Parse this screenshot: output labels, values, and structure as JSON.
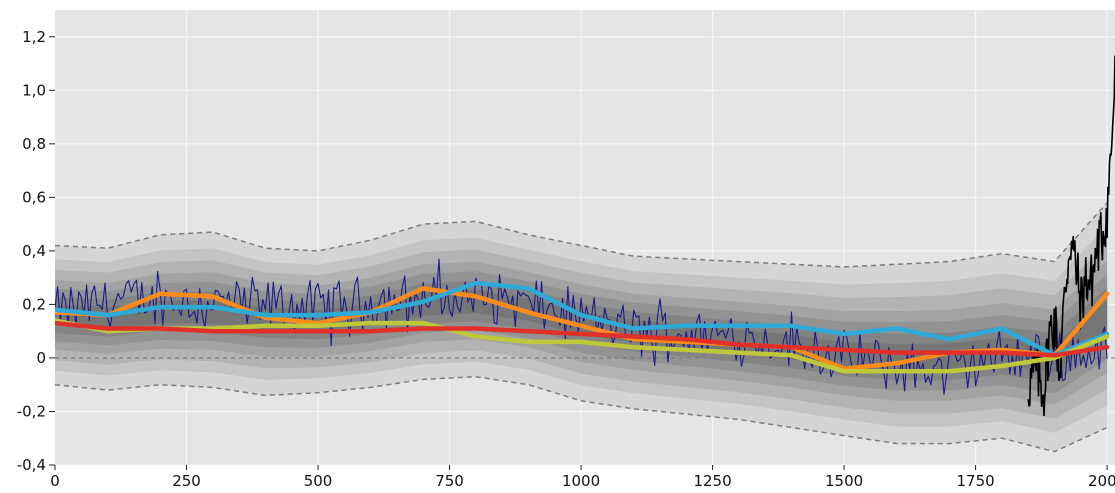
{
  "chart_data": {
    "type": "line",
    "title": "",
    "xlabel": "",
    "ylabel": "",
    "xlim": [
      0,
      2015
    ],
    "ylim": [
      -0.4,
      1.3
    ],
    "x_ticks": [
      0,
      250,
      500,
      750,
      1000,
      1250,
      1500,
      1750,
      2000
    ],
    "x_tick_labels": [
      "0",
      "250",
      "500",
      "750",
      "1000",
      "1250",
      "1500",
      "1750",
      "2000"
    ],
    "y_ticks": [
      -0.4,
      -0.2,
      0,
      0.2,
      0.4,
      0.6,
      0.8,
      1.0,
      1.2
    ],
    "y_tick_labels": [
      "-0,4",
      "-0,2",
      "0",
      "0,2",
      "0,4",
      "0,6",
      "0,8",
      "1,0",
      "1,2"
    ],
    "grid": true,
    "legend": "none",
    "colors": {
      "plot_background": "#e5e5e5",
      "grid": "#f4f4f4",
      "envelope": "#7d7d7d",
      "annual_series": "#1a1a8c",
      "instrumental": "#000000",
      "zero_line": "#777777"
    },
    "uncertainty_bands": {
      "x": [
        0,
        100,
        200,
        300,
        400,
        500,
        600,
        700,
        800,
        900,
        1000,
        1100,
        1200,
        1300,
        1400,
        1500,
        1600,
        1700,
        1800,
        1900,
        2000
      ],
      "center": [
        0.16,
        0.15,
        0.17,
        0.17,
        0.15,
        0.14,
        0.16,
        0.2,
        0.21,
        0.18,
        0.13,
        0.1,
        0.08,
        0.06,
        0.04,
        0.01,
        0.0,
        0.0,
        0.02,
        0.0,
        0.15
      ],
      "upper": [
        0.42,
        0.41,
        0.46,
        0.47,
        0.41,
        0.4,
        0.44,
        0.5,
        0.51,
        0.46,
        0.42,
        0.38,
        0.37,
        0.36,
        0.35,
        0.34,
        0.35,
        0.36,
        0.39,
        0.36,
        0.58
      ],
      "lower": [
        -0.1,
        -0.12,
        -0.1,
        -0.11,
        -0.14,
        -0.13,
        -0.11,
        -0.08,
        -0.07,
        -0.1,
        -0.16,
        -0.19,
        -0.21,
        -0.23,
        -0.26,
        -0.29,
        -0.32,
        -0.32,
        -0.3,
        -0.35,
        -0.26
      ]
    },
    "series": [
      {
        "color": "#ff8c1a",
        "x": [
          0,
          100,
          200,
          300,
          400,
          500,
          600,
          700,
          800,
          900,
          1000,
          1100,
          1200,
          1300,
          1400,
          1500,
          1600,
          1700,
          1800,
          1900,
          2000
        ],
        "values": [
          0.17,
          0.16,
          0.24,
          0.23,
          0.15,
          0.13,
          0.17,
          0.26,
          0.23,
          0.17,
          0.12,
          0.07,
          0.06,
          0.05,
          0.04,
          -0.04,
          -0.02,
          0.02,
          0.03,
          0.01,
          0.24
        ]
      },
      {
        "color": "#2eaad6",
        "x": [
          0,
          100,
          200,
          300,
          400,
          500,
          600,
          700,
          800,
          900,
          1000,
          1100,
          1200,
          1300,
          1400,
          1500,
          1600,
          1700,
          1800,
          1900,
          2000
        ],
        "values": [
          0.18,
          0.16,
          0.19,
          0.19,
          0.16,
          0.16,
          0.17,
          0.21,
          0.28,
          0.26,
          0.16,
          0.11,
          0.12,
          0.12,
          0.12,
          0.09,
          0.11,
          0.07,
          0.11,
          0.01,
          0.09
        ]
      },
      {
        "color": "#bfc83a",
        "x": [
          0,
          100,
          200,
          300,
          400,
          500,
          600,
          700,
          800,
          900,
          1000,
          1100,
          1200,
          1300,
          1400,
          1500,
          1600,
          1700,
          1800,
          1900,
          2000
        ],
        "values": [
          0.14,
          0.1,
          0.11,
          0.11,
          0.12,
          0.12,
          0.13,
          0.13,
          0.08,
          0.06,
          0.06,
          0.04,
          0.03,
          0.02,
          0.01,
          -0.05,
          -0.05,
          -0.05,
          -0.03,
          0.0,
          0.08
        ]
      },
      {
        "color": "#e0302a",
        "x": [
          0,
          100,
          200,
          300,
          400,
          500,
          600,
          700,
          800,
          900,
          1000,
          1100,
          1200,
          1300,
          1400,
          1500,
          1600,
          1700,
          1800,
          1900,
          2000
        ],
        "values": [
          0.13,
          0.11,
          0.11,
          0.1,
          0.1,
          0.1,
          0.1,
          0.11,
          0.11,
          0.1,
          0.09,
          0.08,
          0.07,
          0.05,
          0.04,
          0.03,
          0.02,
          0.02,
          0.02,
          0.01,
          0.04
        ]
      }
    ],
    "annual_series": {
      "x_start": 0,
      "x_end": 2000,
      "step": 5,
      "anchors_x": [
        0,
        100,
        200,
        300,
        400,
        500,
        600,
        700,
        800,
        900,
        1000,
        1100,
        1200,
        1300,
        1400,
        1500,
        1600,
        1700,
        1800,
        1900,
        2000
      ],
      "anchors_y": [
        0.17,
        0.21,
        0.22,
        0.21,
        0.2,
        0.19,
        0.21,
        0.22,
        0.23,
        0.2,
        0.15,
        0.1,
        0.09,
        0.08,
        0.05,
        0.0,
        -0.03,
        -0.05,
        0.01,
        0.0,
        0.05
      ],
      "amplitude": 0.085,
      "min": -0.3,
      "max": 0.45
    },
    "instrumental_series": {
      "x": [
        1850,
        1865,
        1880,
        1890,
        1900,
        1910,
        1920,
        1930,
        1940,
        1950,
        1960,
        1970,
        1980,
        1990,
        2000,
        2005,
        2010,
        2015
      ],
      "values": [
        -0.1,
        -0.05,
        -0.12,
        0.08,
        0.15,
        -0.05,
        0.25,
        0.45,
        0.35,
        0.2,
        0.3,
        0.28,
        0.4,
        0.45,
        0.55,
        0.7,
        0.85,
        1.04
      ]
    }
  }
}
